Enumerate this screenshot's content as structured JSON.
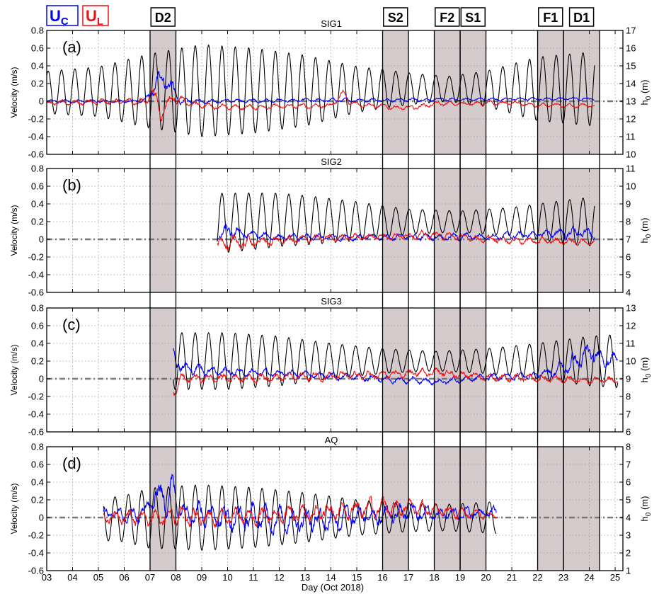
{
  "figure": {
    "legend": {
      "uc": {
        "main": "U",
        "sub": "C",
        "color": "#0000ff"
      },
      "ul": {
        "main": "U",
        "sub": "L",
        "color": "#ee1111"
      }
    },
    "xlabel": "Day (Oct 2018)",
    "xlim": [
      3,
      25.3
    ],
    "xticks": [
      "03",
      "04",
      "05",
      "06",
      "07",
      "08",
      "09",
      "10",
      "11",
      "12",
      "13",
      "14",
      "15",
      "16",
      "17",
      "18",
      "19",
      "20",
      "21",
      "22",
      "23",
      "24",
      "25"
    ],
    "ylabel_left": "Velocity (m/s)",
    "ylabel_right": {
      "main": "h",
      "sub": "0",
      "unit": " (m)"
    },
    "events": [
      {
        "label": "D2",
        "start": 7.0,
        "end": 8.0
      },
      {
        "label": "S2",
        "start": 16.0,
        "end": 17.0
      },
      {
        "label": "F2",
        "start": 18.0,
        "end": 19.0
      },
      {
        "label": "S1",
        "start": 19.0,
        "end": 20.0
      },
      {
        "label": "F1",
        "start": 22.0,
        "end": 23.0
      },
      {
        "label": "D1",
        "start": 23.0,
        "end": 24.4
      }
    ],
    "colors": {
      "uc": "#0000ff",
      "ul": "#ee1111",
      "depth": "#000000",
      "shade": "#c7b9bb",
      "zero": "#777777"
    }
  },
  "chart_data": [
    {
      "type": "line",
      "panel": "(a)",
      "title": "SIG1",
      "ylim": [
        -0.6,
        0.8
      ],
      "yticks": [
        "-0.6",
        "-0.4",
        "-0.2",
        "0",
        "0.2",
        "0.4",
        "0.6",
        "0.8"
      ],
      "ylim_right": [
        10,
        17
      ],
      "yticks_right": [
        "10",
        "11",
        "12",
        "13",
        "14",
        "15",
        "16",
        "17"
      ],
      "t_range": [
        3.0,
        24.2
      ],
      "series": [
        {
          "name": "U_C",
          "axis": "left",
          "mean": [
            [
              3,
              0.0
            ],
            [
              6.8,
              0.0
            ],
            [
              7.1,
              0.12
            ],
            [
              7.5,
              0.3
            ],
            [
              7.85,
              0.12
            ],
            [
              8.2,
              0.0
            ],
            [
              24.2,
              0.03
            ]
          ],
          "amp": [
            [
              3,
              0.02
            ],
            [
              6.8,
              0.03
            ],
            [
              7.2,
              0.12
            ],
            [
              7.8,
              0.15
            ],
            [
              8.3,
              0.03
            ],
            [
              24.2,
              0.02
            ]
          ]
        },
        {
          "name": "U_L",
          "axis": "left",
          "mean": [
            [
              3,
              -0.02
            ],
            [
              6.9,
              0.0
            ],
            [
              7.05,
              0.15
            ],
            [
              7.4,
              -0.12
            ],
            [
              7.9,
              0.05
            ],
            [
              8.5,
              -0.03
            ],
            [
              10,
              -0.07
            ],
            [
              12,
              -0.06
            ],
            [
              14,
              -0.05
            ],
            [
              14.5,
              0.1
            ],
            [
              14.7,
              -0.02
            ],
            [
              16,
              -0.06
            ],
            [
              17,
              -0.08
            ],
            [
              18,
              -0.03
            ],
            [
              21,
              -0.02
            ],
            [
              22,
              -0.05
            ],
            [
              24.2,
              -0.05
            ]
          ],
          "amp": [
            [
              3,
              0.03
            ],
            [
              7,
              0.05
            ],
            [
              7.3,
              0.12
            ],
            [
              7.8,
              0.08
            ],
            [
              8.5,
              0.04
            ],
            [
              24.2,
              0.03
            ]
          ]
        },
        {
          "name": "h0",
          "axis": "right",
          "mean": [
            [
              3,
              13.5
            ],
            [
              8,
              13.6
            ],
            [
              13,
              13.6
            ],
            [
              16,
              13.7
            ],
            [
              24.2,
              13.7
            ]
          ],
          "amp": [
            [
              3,
              1.2
            ],
            [
              5,
              1.4
            ],
            [
              7,
              2.1
            ],
            [
              9,
              2.6
            ],
            [
              11,
              2.4
            ],
            [
              13,
              2.0
            ],
            [
              15,
              1.3
            ],
            [
              17,
              0.9
            ],
            [
              18.5,
              0.7
            ],
            [
              20,
              1.0
            ],
            [
              22,
              1.8
            ],
            [
              24.2,
              2.1
            ]
          ]
        }
      ]
    },
    {
      "type": "line",
      "panel": "(b)",
      "title": "SIG2",
      "ylim": [
        -0.6,
        0.8
      ],
      "yticks": [
        "-0.6",
        "-0.4",
        "-0.2",
        "0",
        "0.2",
        "0.4",
        "0.6",
        "0.8"
      ],
      "ylim_right": [
        4,
        11
      ],
      "yticks_right": [
        "4",
        "5",
        "6",
        "7",
        "8",
        "9",
        "10",
        "11"
      ],
      "t_range": [
        9.6,
        24.2
      ],
      "series": [
        {
          "name": "U_C",
          "axis": "left",
          "mean": [
            [
              9.6,
              0.03
            ],
            [
              10,
              0.08
            ],
            [
              12,
              0.02
            ],
            [
              20,
              0.03
            ],
            [
              23.5,
              0.08
            ],
            [
              24.2,
              0.05
            ]
          ],
          "amp": [
            [
              9.6,
              0.05
            ],
            [
              10,
              0.12
            ],
            [
              11,
              0.05
            ],
            [
              22,
              0.05
            ],
            [
              23.5,
              0.1
            ],
            [
              24.2,
              0.07
            ]
          ]
        },
        {
          "name": "U_L",
          "axis": "left",
          "mean": [
            [
              9.6,
              -0.03
            ],
            [
              10,
              -0.05
            ],
            [
              14,
              0.02
            ],
            [
              18,
              0.05
            ],
            [
              20,
              0.0
            ],
            [
              22,
              -0.02
            ],
            [
              24.2,
              -0.03
            ]
          ],
          "amp": [
            [
              9.6,
              0.08
            ],
            [
              10,
              0.12
            ],
            [
              11,
              0.08
            ],
            [
              13,
              0.05
            ],
            [
              24.2,
              0.05
            ]
          ]
        },
        {
          "name": "h0",
          "axis": "right",
          "mean": [
            [
              9.6,
              7.9
            ],
            [
              12,
              8.1
            ],
            [
              16,
              8.0
            ],
            [
              24.2,
              8.0
            ]
          ],
          "amp": [
            [
              9.6,
              1.7
            ],
            [
              11,
              1.6
            ],
            [
              13,
              1.4
            ],
            [
              15,
              1.1
            ],
            [
              17,
              0.7
            ],
            [
              19,
              0.6
            ],
            [
              21,
              0.8
            ],
            [
              23,
              1.2
            ],
            [
              24.2,
              1.4
            ]
          ]
        }
      ]
    },
    {
      "type": "line",
      "panel": "(c)",
      "title": "SIG3",
      "ylim": [
        -0.6,
        0.8
      ],
      "yticks": [
        "-0.6",
        "-0.4",
        "-0.2",
        "0",
        "0.2",
        "0.4",
        "0.6",
        "0.8"
      ],
      "ylim_right": [
        6,
        13
      ],
      "yticks_right": [
        "6",
        "7",
        "8",
        "9",
        "10",
        "11",
        "12",
        "13"
      ],
      "t_range": [
        7.9,
        25.1
      ],
      "series": [
        {
          "name": "U_C",
          "axis": "left",
          "mean": [
            [
              7.9,
              0.3
            ],
            [
              8.3,
              0.12
            ],
            [
              10,
              0.08
            ],
            [
              13,
              0.05
            ],
            [
              16,
              0.0
            ],
            [
              18,
              -0.04
            ],
            [
              20,
              0.02
            ],
            [
              22,
              0.04
            ],
            [
              23,
              0.12
            ],
            [
              24,
              0.28
            ],
            [
              25.1,
              0.2
            ]
          ],
          "amp": [
            [
              7.9,
              0.15
            ],
            [
              8.5,
              0.08
            ],
            [
              12,
              0.05
            ],
            [
              22,
              0.05
            ],
            [
              23.5,
              0.15
            ],
            [
              25.1,
              0.12
            ]
          ]
        },
        {
          "name": "U_L",
          "axis": "left",
          "mean": [
            [
              7.9,
              -0.1
            ],
            [
              8.3,
              0.0
            ],
            [
              12,
              0.02
            ],
            [
              16,
              0.04
            ],
            [
              18,
              0.08
            ],
            [
              20,
              0.02
            ],
            [
              22,
              0.0
            ],
            [
              25.1,
              -0.02
            ]
          ],
          "amp": [
            [
              7.9,
              0.1
            ],
            [
              8.5,
              0.07
            ],
            [
              25.1,
              0.05
            ]
          ]
        },
        {
          "name": "h0",
          "axis": "right",
          "mean": [
            [
              7.9,
              10.0
            ],
            [
              12,
              10.0
            ],
            [
              16,
              10.0
            ],
            [
              25.1,
              10.0
            ]
          ],
          "amp": [
            [
              7.9,
              1.6
            ],
            [
              10,
              1.6
            ],
            [
              12,
              1.4
            ],
            [
              14,
              1.0
            ],
            [
              16,
              0.7
            ],
            [
              18,
              0.55
            ],
            [
              20,
              0.7
            ],
            [
              22,
              1.0
            ],
            [
              24,
              1.4
            ],
            [
              25.1,
              1.5
            ]
          ]
        }
      ]
    },
    {
      "type": "line",
      "panel": "(d)",
      "title": "AQ",
      "ylim": [
        -0.6,
        0.8
      ],
      "yticks": [
        "-0.6",
        "-0.4",
        "-0.2",
        "0",
        "0.2",
        "0.4",
        "0.6",
        "0.8"
      ],
      "ylim_right": [
        1,
        8
      ],
      "yticks_right": [
        "1",
        "2",
        "3",
        "4",
        "5",
        "6",
        "7",
        "8"
      ],
      "t_range": [
        5.2,
        20.4
      ],
      "series": [
        {
          "name": "U_C",
          "axis": "left",
          "mean": [
            [
              5.2,
              0.05
            ],
            [
              6.5,
              0.0
            ],
            [
              7.3,
              0.25
            ],
            [
              7.8,
              0.3
            ],
            [
              8.3,
              0.1
            ],
            [
              10,
              0.0
            ],
            [
              14,
              -0.02
            ],
            [
              16,
              0.03
            ],
            [
              17,
              0.05
            ],
            [
              20.4,
              0.05
            ]
          ],
          "amp": [
            [
              5.2,
              0.08
            ],
            [
              7,
              0.15
            ],
            [
              7.6,
              0.3
            ],
            [
              8.3,
              0.18
            ],
            [
              10,
              0.18
            ],
            [
              13,
              0.2
            ],
            [
              16,
              0.15
            ],
            [
              18,
              0.1
            ],
            [
              20.4,
              0.08
            ]
          ]
        },
        {
          "name": "U_L",
          "axis": "left",
          "mean": [
            [
              5.2,
              0.0
            ],
            [
              8,
              0.0
            ],
            [
              10,
              0.0
            ],
            [
              13,
              0.03
            ],
            [
              14,
              0.08
            ],
            [
              16.5,
              0.12
            ],
            [
              18,
              0.08
            ],
            [
              20.4,
              0.02
            ]
          ],
          "amp": [
            [
              5.2,
              0.08
            ],
            [
              7.5,
              0.15
            ],
            [
              10,
              0.12
            ],
            [
              13.5,
              0.12
            ],
            [
              16.5,
              0.14
            ],
            [
              18,
              0.1
            ],
            [
              20.4,
              0.05
            ]
          ]
        },
        {
          "name": "h0",
          "axis": "right",
          "mean": [
            [
              5.2,
              3.9
            ],
            [
              8,
              4.0
            ],
            [
              14,
              4.0
            ],
            [
              20.4,
              4.0
            ]
          ],
          "amp": [
            [
              5.2,
              1.2
            ],
            [
              6,
              1.3
            ],
            [
              7,
              1.7
            ],
            [
              9,
              1.85
            ],
            [
              11,
              1.7
            ],
            [
              13,
              1.4
            ],
            [
              15,
              1.0
            ],
            [
              17,
              0.8
            ],
            [
              18.5,
              0.75
            ],
            [
              20.4,
              0.9
            ]
          ]
        }
      ]
    }
  ]
}
